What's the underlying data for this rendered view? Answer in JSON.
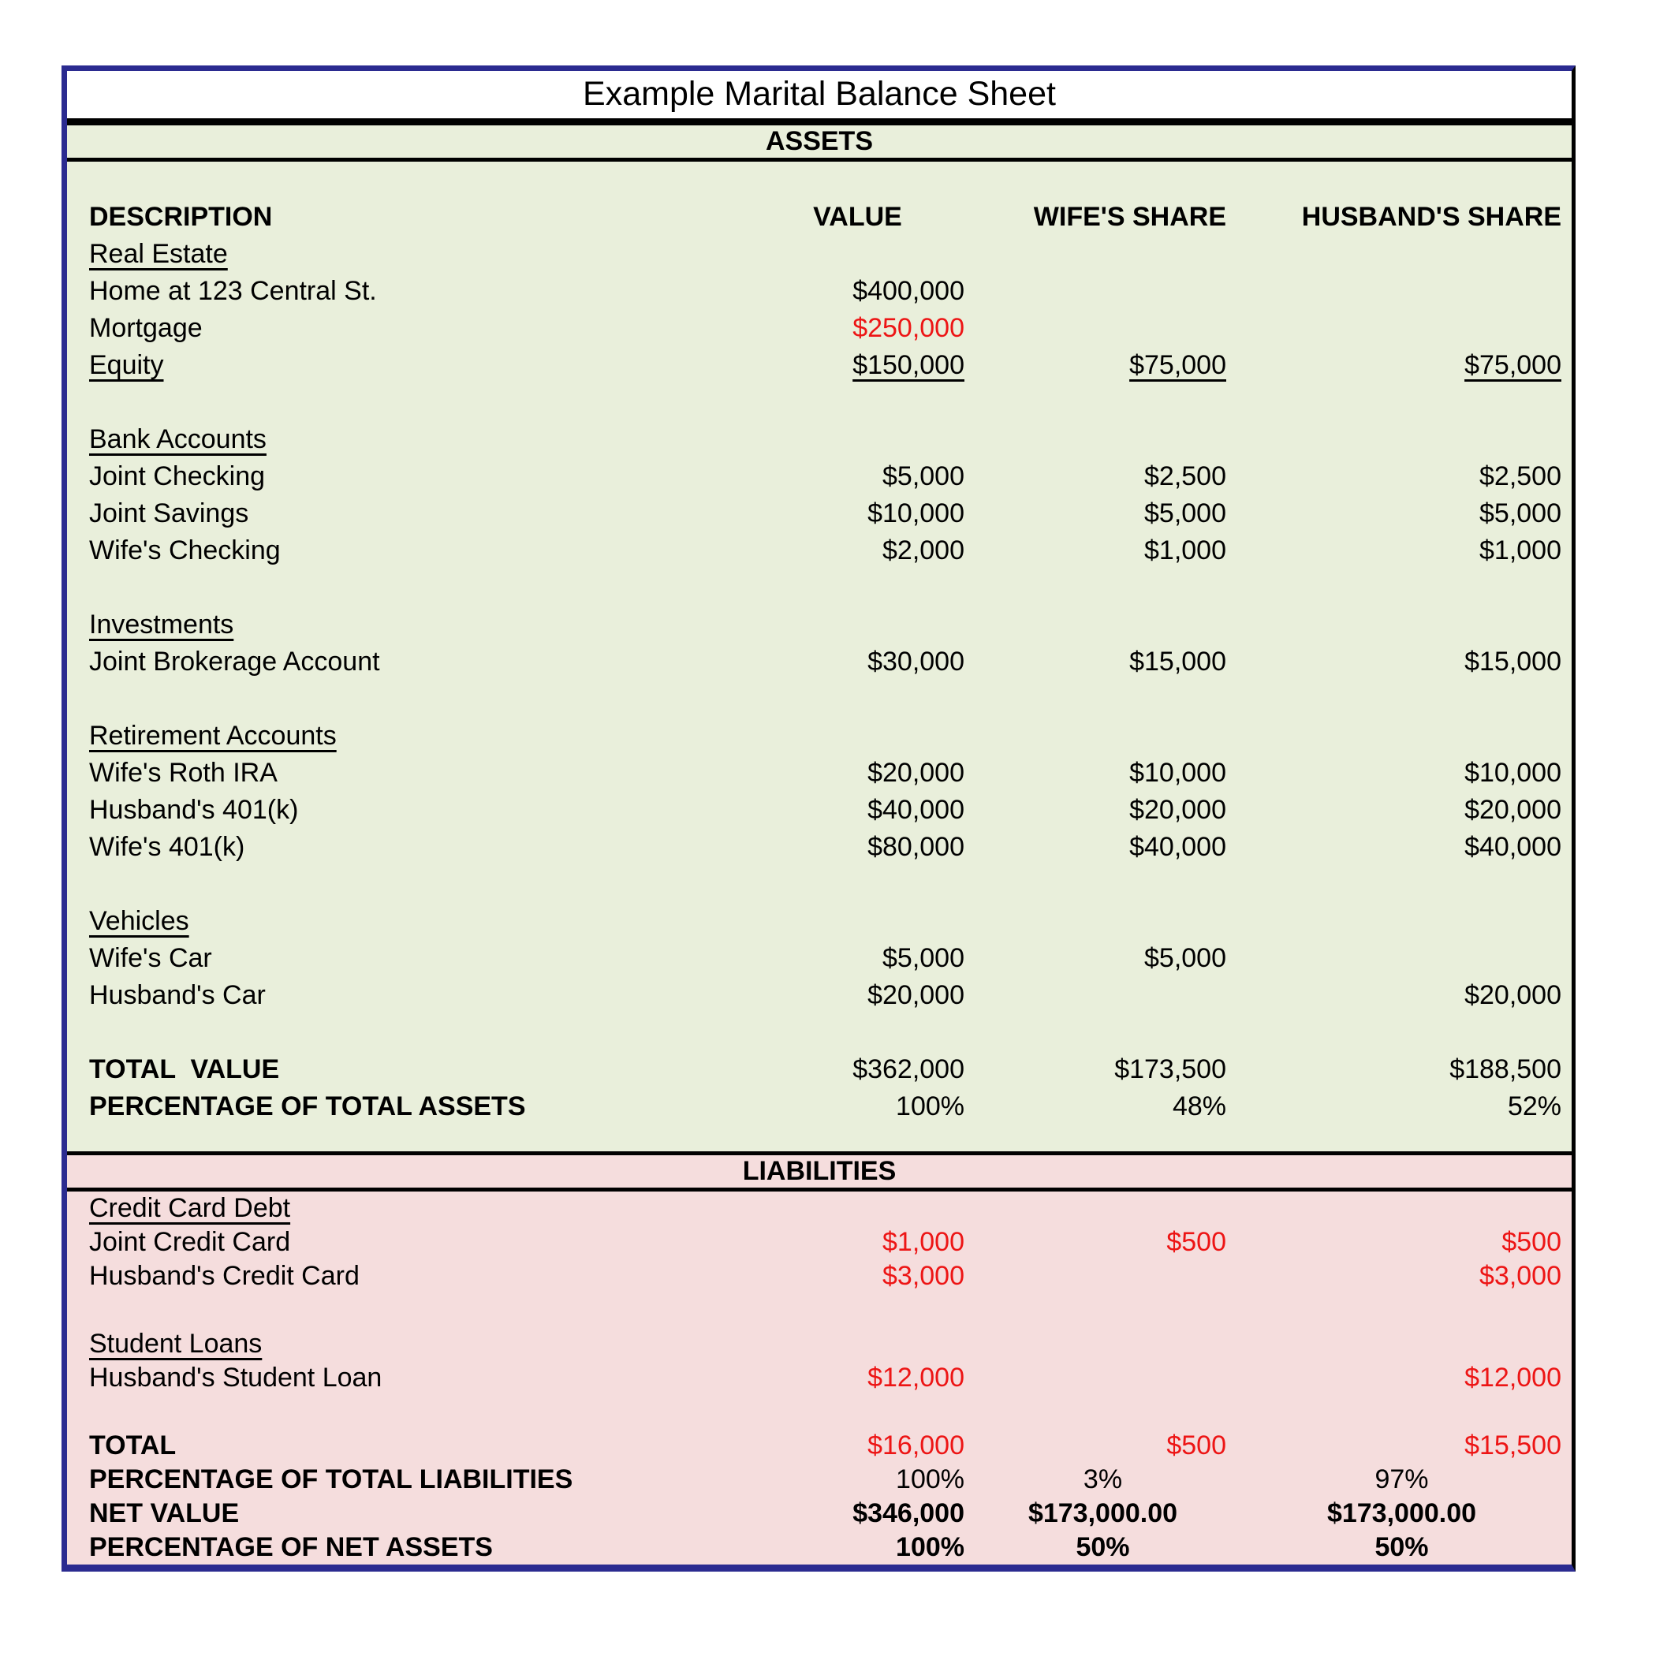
{
  "title": "Example Marital Balance Sheet",
  "colors": {
    "border_navy": "#2b2b90",
    "assets_background": "#e9efdb",
    "liabilities_background": "#f5dddd",
    "negative_red": "#ed1515",
    "text_black": "#000000"
  },
  "assets": {
    "band_label": "ASSETS",
    "rows": [
      {
        "blank": true
      },
      {
        "header": true,
        "label": "DESCRIPTION",
        "value": "VALUE",
        "wife": "WIFE'S SHARE",
        "husband": "HUSBAND'S SHARE"
      },
      {
        "label": "Real Estate",
        "u_label": true
      },
      {
        "label": "Home at 123 Central St.",
        "value": "$400,000"
      },
      {
        "label": "Mortgage",
        "value": "$250,000",
        "red_values": true
      },
      {
        "label": "Equity",
        "value": "$150,000",
        "wife": "$75,000",
        "husband": "$75,000",
        "u_label": true,
        "u_values": true
      },
      {
        "blank": true
      },
      {
        "label": "Bank Accounts",
        "u_label": true
      },
      {
        "label": "Joint Checking",
        "value": "$5,000",
        "wife": "$2,500",
        "husband": "$2,500"
      },
      {
        "label": "Joint Savings",
        "value": "$10,000",
        "wife": "$5,000",
        "husband": "$5,000"
      },
      {
        "label": "Wife's Checking",
        "value": "$2,000",
        "wife": "$1,000",
        "husband": "$1,000"
      },
      {
        "blank": true
      },
      {
        "label": "Investments",
        "u_label": true
      },
      {
        "label": "Joint Brokerage Account",
        "value": "$30,000",
        "wife": "$15,000",
        "husband": "$15,000"
      },
      {
        "blank": true
      },
      {
        "label": "Retirement Accounts",
        "u_label": true
      },
      {
        "label": "Wife's Roth IRA",
        "value": "$20,000",
        "wife": "$10,000",
        "husband": "$10,000"
      },
      {
        "label": "Husband's 401(k)",
        "value": "$40,000",
        "wife": "$20,000",
        "husband": "$20,000"
      },
      {
        "label": "Wife's 401(k)",
        "value": "$80,000",
        "wife": "$40,000",
        "husband": "$40,000"
      },
      {
        "blank": true
      },
      {
        "label": "Vehicles",
        "u_label": true
      },
      {
        "label": "Wife's Car",
        "value": "$5,000",
        "wife": "$5,000"
      },
      {
        "label": "Husband's Car",
        "value": "$20,000",
        "husband": "$20,000"
      },
      {
        "blank": true
      },
      {
        "label": "TOTAL  VALUE",
        "bold_label": true,
        "value": "$362,000",
        "wife": "$173,500",
        "husband": "$188,500"
      },
      {
        "label": "PERCENTAGE OF TOTAL ASSETS",
        "bold_label": true,
        "value": "100%",
        "wife": "48%",
        "husband": "52%"
      }
    ]
  },
  "liabilities": {
    "band_label": "LIABILITIES",
    "rows": [
      {
        "label": "Credit Card Debt",
        "u_label": true
      },
      {
        "label": "Joint Credit Card",
        "value": "$1,000",
        "wife": "$500",
        "husband": "$500",
        "red_values": true
      },
      {
        "label": "Husband's Credit Card",
        "value": "$3,000",
        "husband": "$3,000",
        "red_values": true
      },
      {
        "blank": true
      },
      {
        "label": "Student Loans",
        "u_label": true
      },
      {
        "label": "Husband's Student Loan",
        "value": "$12,000",
        "husband": "$12,000",
        "red_values": true
      },
      {
        "blank": true
      },
      {
        "label": "TOTAL",
        "bold_label": true,
        "value": "$16,000",
        "wife": "$500",
        "husband": "$15,500",
        "red_values": true
      },
      {
        "label": "PERCENTAGE OF TOTAL LIABILITIES",
        "bold_label": true,
        "value": "100%",
        "wife": "3%",
        "husband": "97%",
        "center_wh": true
      },
      {
        "label": "NET VALUE",
        "bold_label": true,
        "bold_values": true,
        "value": "$346,000",
        "wife": "$173,000.00",
        "husband": "$173,000.00",
        "center_wh": true
      },
      {
        "label": "PERCENTAGE OF NET ASSETS",
        "bold_label": true,
        "bold_values": true,
        "value": "100%",
        "wife": "50%",
        "husband": "50%",
        "center_wh": true
      }
    ]
  }
}
